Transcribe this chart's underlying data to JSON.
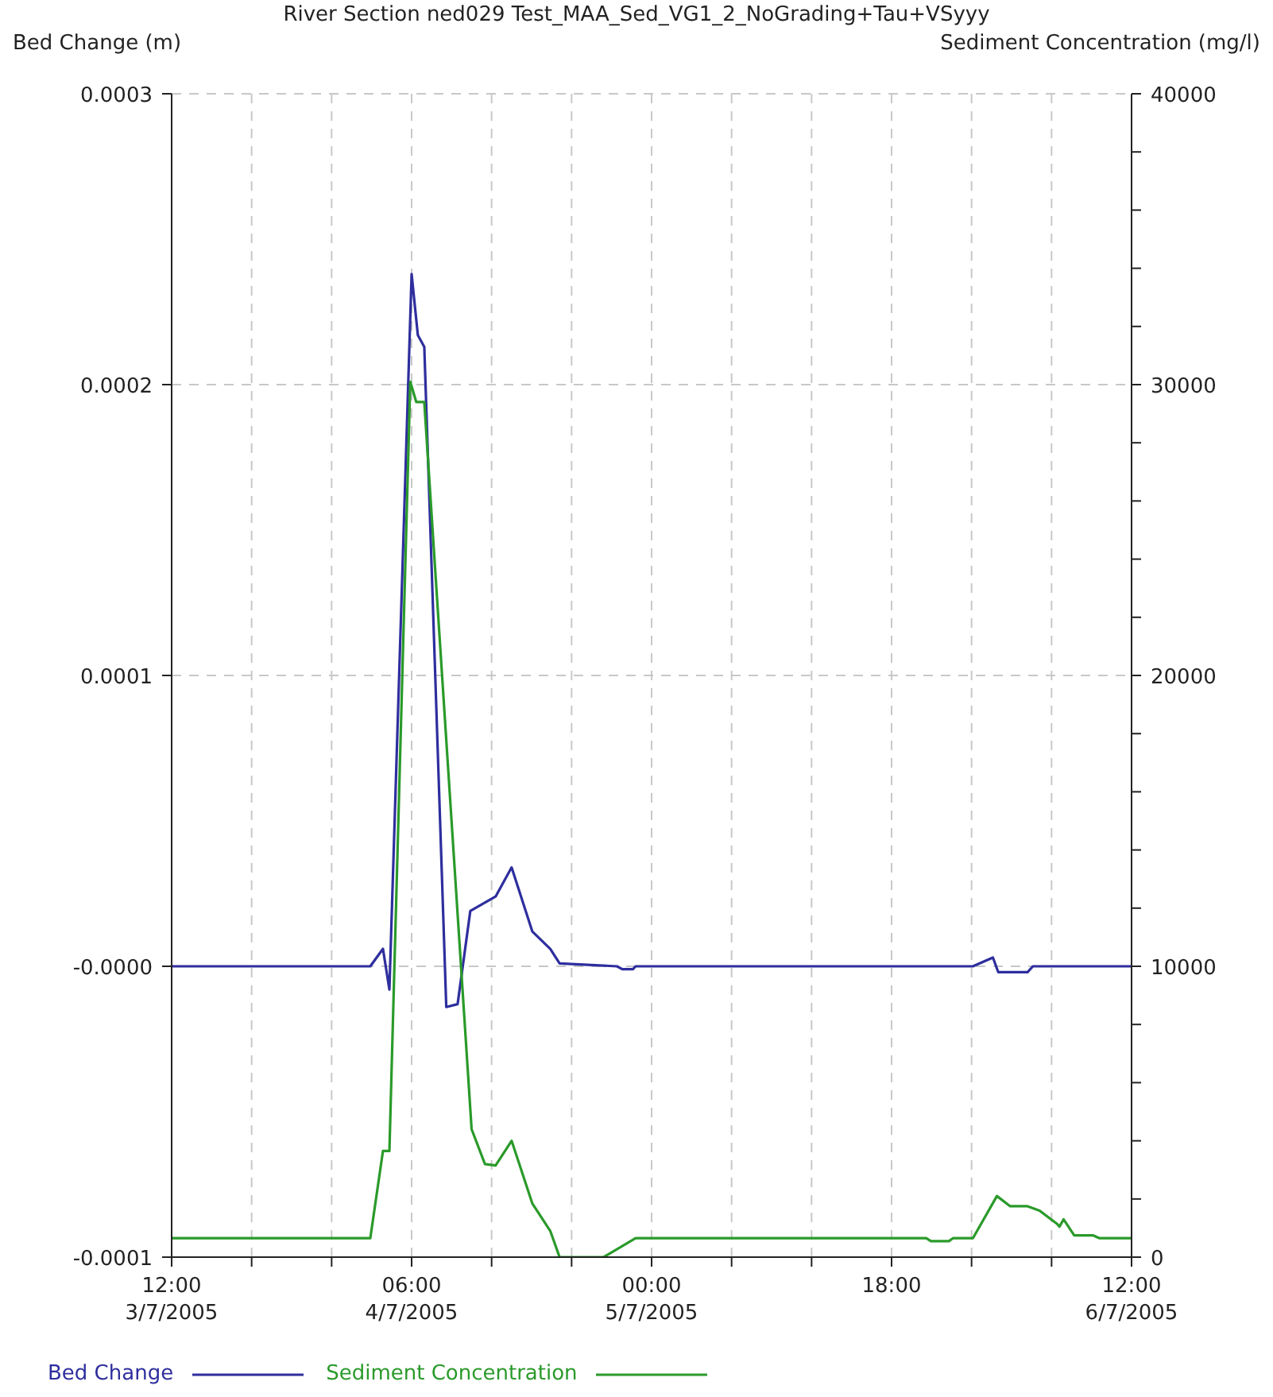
{
  "chart_data": {
    "type": "line",
    "title": "River Section ned029 Test_MAA_Sed_VG1_2_NoGrading+Tau+VSyyy",
    "ylabel": "Bed Change (m)",
    "y2label": "Sediment Concentration (mg/l)",
    "xlim": [
      "2005-07-03T12:00",
      "2005-07-06T12:00"
    ],
    "xticks": [
      {
        "value": "2005-07-03T12:00",
        "label": "12:00\n3/7/2005"
      },
      {
        "value": "2005-07-03T18:00",
        "label": null
      },
      {
        "value": "2005-07-04T00:00",
        "label": null
      },
      {
        "value": "2005-07-04T06:00",
        "label": "06:00\n4/7/2005"
      },
      {
        "value": "2005-07-04T12:00",
        "label": null
      },
      {
        "value": "2005-07-04T18:00",
        "label": null
      },
      {
        "value": "2005-07-05T00:00",
        "label": "00:00\n5/7/2005"
      },
      {
        "value": "2005-07-05T06:00",
        "label": null
      },
      {
        "value": "2005-07-05T12:00",
        "label": null
      },
      {
        "value": "2005-07-05T18:00",
        "label": "18:00"
      },
      {
        "value": "2005-07-06T00:00",
        "label": null
      },
      {
        "value": "2005-07-06T06:00",
        "label": null
      },
      {
        "value": "2005-07-06T12:00",
        "label": "12:00\n6/7/2005"
      }
    ],
    "ylim": [
      -0.0001,
      0.0003
    ],
    "yticks": [
      -0.0001,
      {
        "value": 0,
        "label": "-0.0000"
      },
      0.0001,
      0.0002,
      0.0003
    ],
    "y2lim": [
      0,
      40000
    ],
    "y2ticks": [
      0,
      {
        "value": 2000,
        "label": null
      },
      {
        "value": 4000,
        "label": null
      },
      {
        "value": 6000,
        "label": null
      },
      {
        "value": 8000,
        "label": null
      },
      10000,
      {
        "value": 12000,
        "label": null
      },
      {
        "value": 14000,
        "label": null
      },
      {
        "value": 16000,
        "label": null
      },
      {
        "value": 18000,
        "label": null
      },
      20000,
      {
        "value": 22000,
        "label": null
      },
      {
        "value": 24000,
        "label": null
      },
      {
        "value": 26000,
        "label": null
      },
      {
        "value": 28000,
        "label": null
      },
      30000,
      {
        "value": 32000,
        "label": null
      },
      {
        "value": 34000,
        "label": null
      },
      {
        "value": 36000,
        "label": null
      },
      {
        "value": 38000,
        "label": null
      },
      40000
    ],
    "grid": true,
    "legend": "bottom left",
    "marker": "none",
    "line_style": "solid",
    "series": [
      {
        "name": "Bed Change",
        "color": "#2e2e9e",
        "x": [
          "2005-07-03T12:00",
          "2005-07-04T02:54",
          "2005-07-04T03:51",
          "2005-07-04T04:20",
          "2005-07-04T06:00",
          "2005-07-04T06:28",
          "2005-07-04T06:57",
          "2005-07-04T08:36",
          "2005-07-04T09:27",
          "2005-07-04T10:24",
          "2005-07-04T12:18",
          "2005-07-04T13:30",
          "2005-07-04T15:03",
          "2005-07-04T16:24",
          "2005-07-04T17:06",
          "2005-07-04T21:24",
          "2005-07-04T21:48",
          "2005-07-04T22:36",
          "2005-07-04T22:48",
          "2005-07-05T20:18",
          "2005-07-06T00:06",
          "2005-07-06T01:36",
          "2005-07-06T02:00",
          "2005-07-06T04:12",
          "2005-07-06T04:36",
          "2005-07-06T12:00"
        ],
        "values": [
          0,
          0,
          6e-06,
          -8e-06,
          0.000238,
          0.000217,
          0.000213,
          -1.4e-05,
          -1.3e-05,
          1.9e-05,
          2.4e-05,
          3.4e-05,
          1.2e-05,
          6e-06,
          1e-06,
          0,
          -1e-06,
          -1e-06,
          0,
          0,
          0,
          3e-06,
          -2e-06,
          -2e-06,
          0,
          0
        ]
      },
      {
        "name": "Sediment Concentration",
        "color": "#2a9a2a",
        "axis": "y2",
        "x": [
          "2005-07-03T12:00",
          "2005-07-04T02:54",
          "2005-07-04T03:51",
          "2005-07-04T04:20",
          "2005-07-04T05:54",
          "2005-07-04T06:21",
          "2005-07-04T06:57",
          "2005-07-04T10:30",
          "2005-07-04T11:30",
          "2005-07-04T12:18",
          "2005-07-04T13:30",
          "2005-07-04T15:03",
          "2005-07-04T16:24",
          "2005-07-04T17:06",
          "2005-07-04T20:24",
          "2005-07-04T22:48",
          "2005-07-05T20:36",
          "2005-07-05T20:57",
          "2005-07-05T22:18",
          "2005-07-05T22:36",
          "2005-07-06T00:06",
          "2005-07-06T01:54",
          "2005-07-06T02:54",
          "2005-07-06T04:12",
          "2005-07-06T05:06",
          "2005-07-06T06:24",
          "2005-07-06T06:36",
          "2005-07-06T06:54",
          "2005-07-06T07:42",
          "2005-07-06T09:06",
          "2005-07-06T09:36",
          "2005-07-06T12:00"
        ],
        "values": [
          650,
          650,
          3650,
          3650,
          30100,
          29400,
          29400,
          4400,
          3200,
          3150,
          4000,
          1850,
          900,
          0,
          0,
          650,
          650,
          550,
          550,
          650,
          650,
          2100,
          1750,
          1750,
          1600,
          1150,
          1050,
          1300,
          750,
          750,
          650,
          650
        ]
      }
    ]
  }
}
